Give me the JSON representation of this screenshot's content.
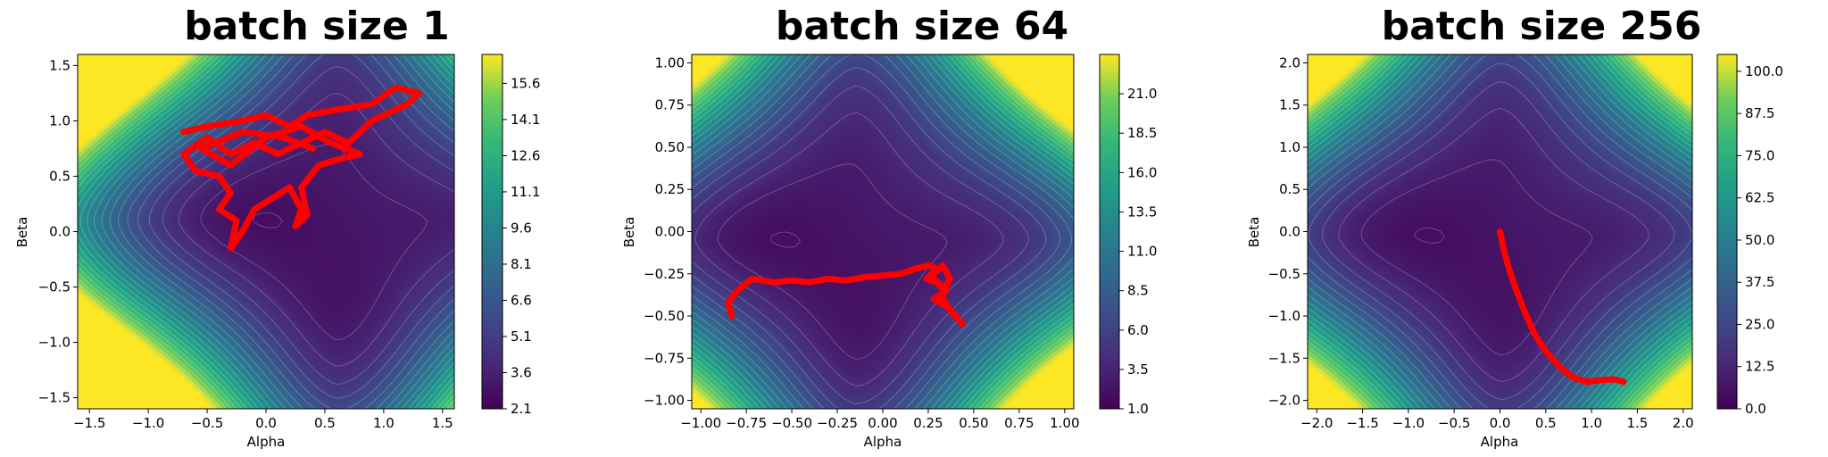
{
  "chart_data": [
    {
      "type": "contour",
      "title": "batch size 1",
      "xlabel": "Alpha",
      "ylabel": "Beta",
      "xlim": [
        -1.6,
        1.6
      ],
      "ylim": [
        -1.6,
        1.6
      ],
      "xticks": [
        "−1.5",
        "−1.0",
        "−0.5",
        "0.0",
        "0.5",
        "1.0",
        "1.5"
      ],
      "xtick_values": [
        -1.5,
        -1.0,
        -0.5,
        0.0,
        0.5,
        1.0,
        1.5
      ],
      "yticks": [
        "−1.5",
        "−1.0",
        "−0.5",
        "0.0",
        "0.5",
        "1.0",
        "1.5"
      ],
      "ytick_values": [
        -1.5,
        -1.0,
        -0.5,
        0.0,
        0.5,
        1.0,
        1.5
      ],
      "colorbar_ticks": [
        "2.1",
        "3.6",
        "5.1",
        "6.6",
        "8.1",
        "9.6",
        "11.1",
        "12.6",
        "14.1",
        "15.6"
      ],
      "colorbar_values": [
        2.1,
        3.6,
        5.1,
        6.6,
        8.1,
        9.6,
        11.1,
        12.6,
        14.1,
        15.6
      ],
      "colorbar_range": [
        2.1,
        16.8
      ],
      "colormap": "viridis",
      "minimum": [
        0.6,
        0.1
      ],
      "trajectory_color": "#ff0000",
      "trajectory": [
        [
          -0.7,
          0.9
        ],
        [
          -0.5,
          0.95
        ],
        [
          -0.2,
          1.0
        ],
        [
          0.0,
          1.05
        ],
        [
          0.2,
          0.95
        ],
        [
          0.35,
          1.05
        ],
        [
          0.6,
          1.1
        ],
        [
          0.9,
          1.15
        ],
        [
          1.1,
          1.3
        ],
        [
          1.3,
          1.25
        ],
        [
          1.2,
          1.15
        ],
        [
          0.9,
          1.0
        ],
        [
          0.7,
          0.8
        ],
        [
          0.5,
          0.9
        ],
        [
          0.3,
          0.8
        ],
        [
          0.1,
          0.7
        ],
        [
          -0.1,
          0.8
        ],
        [
          -0.3,
          0.7
        ],
        [
          -0.5,
          0.85
        ],
        [
          -0.7,
          0.7
        ],
        [
          -0.6,
          0.55
        ],
        [
          -0.4,
          0.5
        ],
        [
          -0.3,
          0.35
        ],
        [
          -0.4,
          0.2
        ],
        [
          -0.25,
          0.1
        ],
        [
          -0.3,
          -0.15
        ],
        [
          -0.2,
          0.0
        ],
        [
          -0.1,
          0.2
        ],
        [
          0.05,
          0.3
        ],
        [
          0.2,
          0.4
        ],
        [
          0.3,
          0.2
        ],
        [
          0.25,
          0.05
        ],
        [
          0.35,
          0.15
        ],
        [
          0.3,
          0.4
        ],
        [
          0.45,
          0.6
        ],
        [
          0.6,
          0.65
        ],
        [
          0.8,
          0.7
        ],
        [
          0.55,
          0.8
        ],
        [
          0.3,
          0.95
        ],
        [
          0.0,
          0.85
        ],
        [
          -0.3,
          0.6
        ],
        [
          -0.55,
          0.75
        ],
        [
          -0.2,
          0.9
        ],
        [
          0.15,
          0.85
        ],
        [
          0.4,
          0.75
        ]
      ]
    },
    {
      "type": "contour",
      "title": "batch size 64",
      "xlabel": "Alpha",
      "ylabel": "Beta",
      "xlim": [
        -1.05,
        1.05
      ],
      "ylim": [
        -1.05,
        1.05
      ],
      "xticks": [
        "−1.00",
        "−0.75",
        "−0.50",
        "−0.25",
        "0.00",
        "0.25",
        "0.50",
        "0.75",
        "1.00"
      ],
      "xtick_values": [
        -1.0,
        -0.75,
        -0.5,
        -0.25,
        0.0,
        0.25,
        0.5,
        0.75,
        1.0
      ],
      "yticks": [
        "−1.00",
        "−0.75",
        "−0.50",
        "−0.25",
        "0.00",
        "0.25",
        "0.50",
        "0.75",
        "1.00"
      ],
      "ytick_values": [
        -1.0,
        -0.75,
        -0.5,
        -0.25,
        0.0,
        0.25,
        0.5,
        0.75,
        1.0
      ],
      "colorbar_ticks": [
        "1.0",
        "3.5",
        "6.0",
        "8.5",
        "11.0",
        "13.5",
        "16.0",
        "18.5",
        "21.0"
      ],
      "colorbar_values": [
        1.0,
        3.5,
        6.0,
        8.5,
        11.0,
        13.5,
        16.0,
        18.5,
        21.0
      ],
      "colorbar_range": [
        1.0,
        23.5
      ],
      "colormap": "viridis",
      "minimum": [
        -0.15,
        -0.05
      ],
      "trajectory_color": "#ff0000",
      "trajectory": [
        [
          -0.83,
          -0.5
        ],
        [
          -0.85,
          -0.42
        ],
        [
          -0.8,
          -0.35
        ],
        [
          -0.72,
          -0.28
        ],
        [
          -0.6,
          -0.3
        ],
        [
          -0.5,
          -0.29
        ],
        [
          -0.4,
          -0.3
        ],
        [
          -0.3,
          -0.28
        ],
        [
          -0.2,
          -0.29
        ],
        [
          -0.1,
          -0.27
        ],
        [
          0.0,
          -0.26
        ],
        [
          0.1,
          -0.25
        ],
        [
          0.18,
          -0.22
        ],
        [
          0.25,
          -0.2
        ],
        [
          0.3,
          -0.22
        ],
        [
          0.24,
          -0.28
        ],
        [
          0.3,
          -0.3
        ],
        [
          0.35,
          -0.35
        ],
        [
          0.28,
          -0.4
        ],
        [
          0.36,
          -0.45
        ],
        [
          0.4,
          -0.5
        ],
        [
          0.44,
          -0.55
        ],
        [
          0.38,
          -0.48
        ],
        [
          0.32,
          -0.38
        ],
        [
          0.37,
          -0.28
        ],
        [
          0.33,
          -0.2
        ],
        [
          0.27,
          -0.26
        ],
        [
          0.32,
          -0.33
        ]
      ]
    },
    {
      "type": "contour",
      "title": "batch size 256",
      "xlabel": "Alpha",
      "ylabel": "Beta",
      "xlim": [
        -2.1,
        2.1
      ],
      "ylim": [
        -2.1,
        2.1
      ],
      "xticks": [
        "−2.0",
        "−1.5",
        "−1.0",
        "−0.5",
        "0.0",
        "0.5",
        "1.0",
        "1.5",
        "2.0"
      ],
      "xtick_values": [
        -2.0,
        -1.5,
        -1.0,
        -0.5,
        0.0,
        0.5,
        1.0,
        1.5,
        2.0
      ],
      "yticks": [
        "−2.0",
        "−1.5",
        "−1.0",
        "−0.5",
        "0.0",
        "0.5",
        "1.0",
        "1.5",
        "2.0"
      ],
      "ytick_values": [
        -2.0,
        -1.5,
        -1.0,
        -0.5,
        0.0,
        0.5,
        1.0,
        1.5,
        2.0
      ],
      "colorbar_ticks": [
        "0.0",
        "12.5",
        "25.0",
        "37.5",
        "50.0",
        "62.5",
        "75.0",
        "87.5",
        "100.0"
      ],
      "colorbar_values": [
        0.0,
        12.5,
        25.0,
        37.5,
        50.0,
        62.5,
        75.0,
        87.5,
        100.0
      ],
      "colorbar_range": [
        0.0,
        105.0
      ],
      "colormap": "viridis",
      "minimum": [
        0.0,
        -0.05
      ],
      "trajectory_color": "#ff0000",
      "trajectory": [
        [
          0.0,
          0.0
        ],
        [
          0.02,
          -0.1
        ],
        [
          0.05,
          -0.25
        ],
        [
          0.1,
          -0.45
        ],
        [
          0.18,
          -0.7
        ],
        [
          0.27,
          -0.95
        ],
        [
          0.37,
          -1.2
        ],
        [
          0.5,
          -1.42
        ],
        [
          0.65,
          -1.6
        ],
        [
          0.8,
          -1.73
        ],
        [
          0.95,
          -1.78
        ],
        [
          1.1,
          -1.76
        ],
        [
          1.25,
          -1.75
        ],
        [
          1.35,
          -1.78
        ]
      ]
    }
  ]
}
